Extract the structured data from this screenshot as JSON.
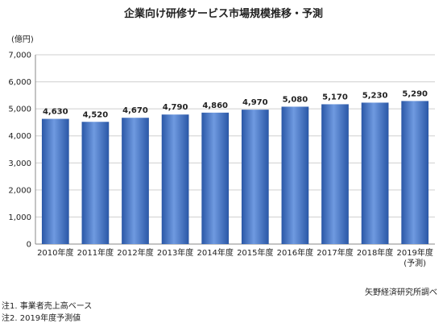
{
  "chart_data": {
    "type": "bar",
    "title": "企業向け研修サービス市場規模推移・予測",
    "ylabel": "(億円)",
    "xlabel": "",
    "ylim": [
      0,
      7000
    ],
    "yticks": [
      "0",
      "1,000",
      "2,000",
      "3,000",
      "4,000",
      "5,000",
      "6,000",
      "7,000"
    ],
    "grid": true,
    "categories": [
      "2010年度",
      "2011年度",
      "2012年度",
      "2013年度",
      "2014年度",
      "2015年度",
      "2016年度",
      "2017年度",
      "2018年度",
      "2019年度"
    ],
    "category_sublabels": [
      "",
      "",
      "",
      "",
      "",
      "",
      "",
      "",
      "",
      "(予測)"
    ],
    "values": [
      4630,
      4520,
      4670,
      4790,
      4860,
      4970,
      5080,
      5170,
      5230,
      5290
    ],
    "value_labels": [
      "4,630",
      "4,520",
      "4,670",
      "4,790",
      "4,860",
      "4,970",
      "5,080",
      "5,170",
      "5,230",
      "5,290"
    ],
    "bar_color": "#3a6fc2"
  },
  "source": "矢野経済研究所調べ",
  "notes": [
    "注1. 事業者売上高ベース",
    "注2. 2019年度予測値"
  ]
}
